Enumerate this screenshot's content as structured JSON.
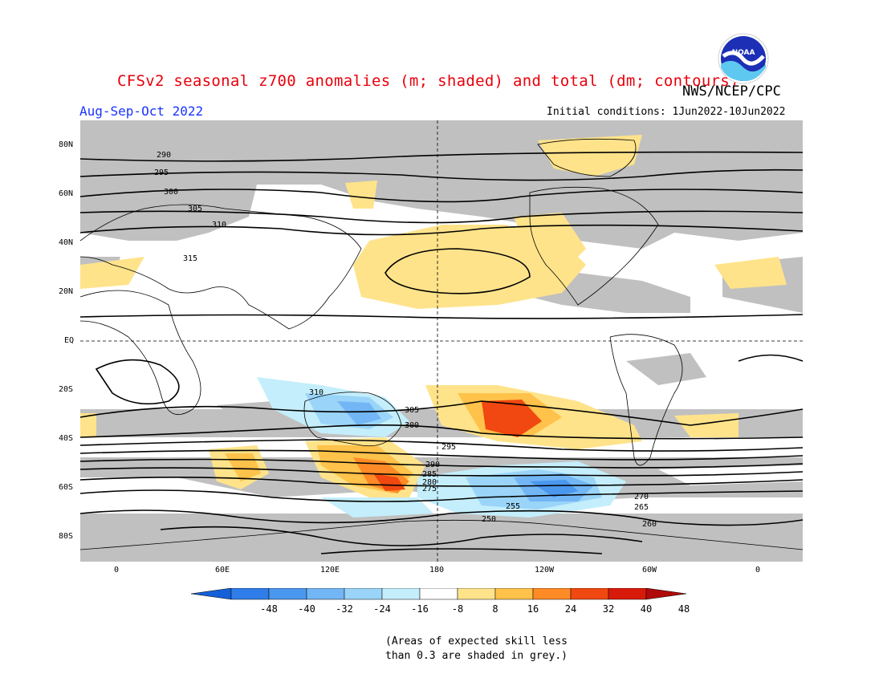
{
  "header": {
    "title": "CFSv2 seasonal z700 anomalies (m; shaded) and total (dm; contours)",
    "agency": "NWS/NCEP/CPC",
    "season": "Aug-Sep-Oct 2022",
    "initial_conditions": "Initial conditions: 1Jun2022-10Jun2022",
    "logo_text": "NOAA"
  },
  "axes": {
    "lat_labels": [
      "80N",
      "60N",
      "40N",
      "20N",
      "EQ",
      "20S",
      "40S",
      "60S",
      "80S"
    ],
    "lon_labels": [
      "0",
      "60E",
      "120E",
      "180",
      "120W",
      "60W",
      "0"
    ]
  },
  "colorbar": {
    "ticks": [
      "-48",
      "-40",
      "-32",
      "-24",
      "-16",
      "-8",
      "8",
      "16",
      "24",
      "32",
      "40",
      "48"
    ],
    "colors": [
      "#1560d8",
      "#2f7de8",
      "#4a97ee",
      "#72b6f5",
      "#9ad4f8",
      "#c4eefb",
      "#ffffff",
      "#ffe38a",
      "#ffc24a",
      "#ff8a26",
      "#f04810",
      "#d81a0a",
      "#b00a0a"
    ]
  },
  "colors": {
    "grey_mask": "#c0c0c0",
    "contour": "#000000",
    "coast": "#000000"
  },
  "contour_labels": [
    "290",
    "295",
    "300",
    "305",
    "310",
    "315",
    "310",
    "305",
    "300",
    "295",
    "290",
    "285",
    "280",
    "275",
    "270",
    "265",
    "260",
    "255",
    "250"
  ],
  "footnote": {
    "line1": "(Areas of expected skill less",
    "line2": "than 0.3 are shaded in grey.)"
  }
}
